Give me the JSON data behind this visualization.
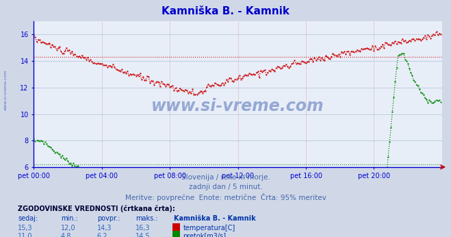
{
  "title": "Kamniška B. - Kamnik",
  "title_color": "#0000cc",
  "bg_color": "#d0d8e8",
  "plot_bg_color": "#e8eef8",
  "grid_color": "#b8c8d8",
  "x_grid_color": "#cc8888",
  "axis_color": "#0000cc",
  "x_labels": [
    "pet 00:00",
    "pet 04:00",
    "pet 08:00",
    "pet 12:00",
    "pet 16:00",
    "pet 20:00"
  ],
  "x_ticks": [
    0,
    48,
    96,
    144,
    192,
    240
  ],
  "x_max": 288,
  "y_min": 6,
  "y_max": 17,
  "y_ticks": [
    6,
    8,
    10,
    12,
    14,
    16
  ],
  "y_tick_labels": [
    "6",
    "8",
    "10",
    "12",
    "14",
    "16"
  ],
  "temp_color": "#cc0000",
  "flow_color": "#008800",
  "temp_avg": 14.3,
  "flow_avg": 6.2,
  "subtitle1": "Slovenija / reke in morje.",
  "subtitle2": "zadnji dan / 5 minut.",
  "subtitle3": "Meritve: povprečne  Enote: metrične  Črta: 95% meritev",
  "subtitle_color": "#4466aa",
  "table_header": "ZGODOVINSKE VREDNOSTI (črtkana črta):",
  "table_col1": "sedaj:",
  "table_col2": "min.:",
  "table_col3": "povpr.:",
  "table_col4": "maks.:",
  "table_col5": "Kamniška B. - Kamnik",
  "row1": [
    "15,3",
    "12,0",
    "14,3",
    "16,3",
    "temperatura[C]"
  ],
  "row2": [
    "11,0",
    "4,8",
    "6,2",
    "14,5",
    "pretok[m3/s]"
  ],
  "watermark": "www.si-vreme.com",
  "watermark_color": "#3355aa",
  "side_text": "www.si-vreme.com"
}
